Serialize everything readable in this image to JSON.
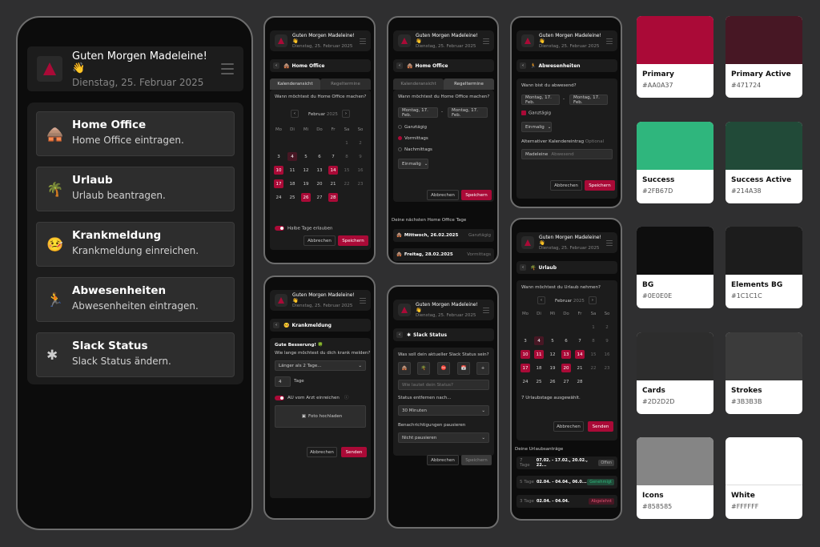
{
  "greeting": "Guten Morgen Madeleine! 👋",
  "date": "Dienstag, 25. Februar 2025",
  "menu": [
    {
      "icon": "🛖",
      "title": "Home Office",
      "subtitle": "Home Office eintragen."
    },
    {
      "icon": "🌴",
      "title": "Urlaub",
      "subtitle": "Urlaub beantragen."
    },
    {
      "icon": "🤒",
      "title": "Krankmeldung",
      "subtitle": "Krankmeldung einreichen."
    },
    {
      "icon": "🏃",
      "title": "Abwesenheiten",
      "subtitle": "Abwesenheiten eintragen."
    },
    {
      "icon": "✱",
      "title": "Slack Status",
      "subtitle": "Slack Status ändern."
    }
  ],
  "home_office": {
    "section": "Home Office",
    "tab_calendar": "Kalenderansicht",
    "tab_regular": "Regeltermine",
    "question": "Wann möchtest du Home Office machen?",
    "month": "Februar",
    "year": "2025",
    "weekdays": [
      "Mo",
      "Di",
      "Mi",
      "Do",
      "Fr",
      "Sa",
      "So"
    ],
    "half_days_label": "Halbe Tage erlauben",
    "cancel": "Abbrechen",
    "save": "Speichern"
  },
  "regular": {
    "section": "Home Office",
    "tab_calendar": "Kalenderansicht",
    "tab_regular": "Regeltermine",
    "question": "Wann möchtest du Home Office machen?",
    "from": "Montag, 17. Feb.",
    "to": "Montag, 17. Feb.",
    "sep": "-",
    "opt_full": "Ganztägig",
    "opt_morning": "Vormittags",
    "opt_afternoon": "Nachmittags",
    "repeat": "Einmalig",
    "cancel": "Abbrechen",
    "save": "Speichern",
    "next_label": "Deine nächsten Home Office Tage",
    "next": [
      {
        "date": "Mittwoch, 26.02.2025",
        "type": "Ganztägig"
      },
      {
        "date": "Freitag, 28.02.2025",
        "type": "Vormittags"
      }
    ]
  },
  "absences": {
    "section": "Abwesenheiten",
    "question": "Wann bist du abwesend?",
    "from": "Montag, 17. Feb.",
    "to": "Montag, 17. Feb.",
    "sep": "-",
    "full_day": "Ganztägig",
    "repeat": "Einmalig",
    "alt_label": "Alternativer Kalendereintrag",
    "alt_optional": "Optional",
    "alt_name": "Madeleine",
    "alt_placeholder": "Abwesend",
    "cancel": "Abbrechen",
    "save": "Speichern"
  },
  "sick": {
    "section": "Krankmeldung",
    "get_well": "Gute Besserung! 🍀",
    "question": "Wie lange möchtest du dich krank melden?",
    "select": "Länger als 2 Tage...",
    "days_value": "4",
    "days_label": "Tage",
    "au_label": "AU vom Arzt einreichen",
    "upload": "Foto hochladen",
    "cancel": "Abbrechen",
    "send": "Senden"
  },
  "slack": {
    "section": "Slack Status",
    "question": "Was soll dein aktueller Slack Status sein?",
    "icons": [
      "🛖",
      "🌴",
      "⛔",
      "📅",
      "+"
    ],
    "status_placeholder": "Wie lautet dein Status?",
    "remove_label": "Status entfernen nach...",
    "remove_value": "30 Minuten",
    "notify_label": "Benachrichtigungen pausieren",
    "notify_value": "Nicht pausieren",
    "cancel": "Abbrechen",
    "save": "Speichern"
  },
  "vacation": {
    "section": "Urlaub",
    "question": "Wann möchtest du Urlaub nehmen?",
    "month": "Februar",
    "year": "2025",
    "selected": "7 Urlaubstage ausgewählt.",
    "cancel": "Abbrechen",
    "send": "Senden",
    "requests_label": "Deine Urlaubsanträge",
    "requests": [
      {
        "days": "7 Tage",
        "range": "07.02. - 17.02., 20.02., 22...",
        "status": "Offen"
      },
      {
        "days": "5 Tage",
        "range": "02.04. - 04.04., 06.0...",
        "status": "Genehmigt"
      },
      {
        "days": "3 Tage",
        "range": "02.04. - 04.04.",
        "status": "Abgelehnt"
      }
    ]
  },
  "swatches": [
    {
      "name": "Primary",
      "hex": "#AA0A37"
    },
    {
      "name": "Primary Active",
      "hex": "#471724"
    },
    {
      "name": "Success",
      "hex": "#2FB67D"
    },
    {
      "name": "Success Active",
      "hex": "#214A38"
    },
    {
      "name": "BG",
      "hex": "#0E0E0E"
    },
    {
      "name": "Elements BG",
      "hex": "#1C1C1C"
    },
    {
      "name": "Cards",
      "hex": "#2D2D2D"
    },
    {
      "name": "Strokes",
      "hex": "#3B3B3B"
    },
    {
      "name": "Icons",
      "hex": "#858585"
    },
    {
      "name": "White",
      "hex": "#FFFFFF"
    }
  ]
}
